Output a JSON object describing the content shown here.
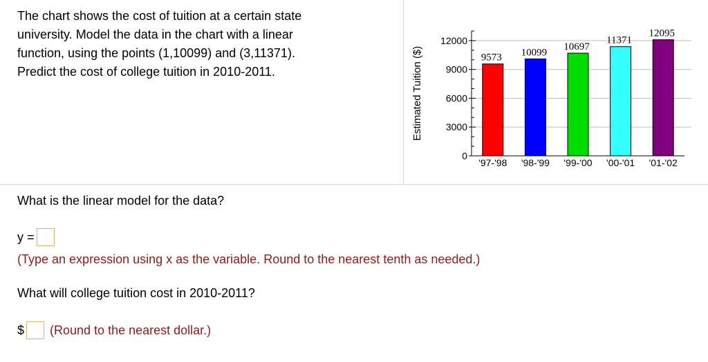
{
  "problem": {
    "lines": [
      "The chart shows the cost of tuition at a certain state",
      "university. Model the data in the chart with a linear",
      "function, using the points (1,10099) and (3,11371).",
      "Predict the cost of college tuition in 2010-2011."
    ]
  },
  "questions": {
    "q1": "What is the linear model for the data?",
    "q1_prefix": "y =",
    "q1_hint": "(Type an expression using x as the variable. Round to the nearest tenth as needed.)",
    "q2": "What will college tuition cost in 2010-2011?",
    "q2_prefix": "$",
    "q2_hint": "(Round to the nearest dollar.)"
  },
  "colors": {
    "hint": "#8b1a1a",
    "answer_box_border": "#d4b36a"
  },
  "chart_data": {
    "type": "bar",
    "categories": [
      "'97-'98",
      "'98-'99",
      "'99-'00",
      "'00-'01",
      "'01-'02"
    ],
    "values": [
      9573,
      10099,
      10697,
      11371,
      12095
    ],
    "data_labels": [
      "9573",
      "10099",
      "10697",
      "11371",
      "12095"
    ],
    "bar_colors": [
      "#ff0000",
      "#0000ff",
      "#00dd00",
      "#33ffff",
      "#800080"
    ],
    "ylabel": "Estimated Tuition ($)",
    "xlabel": "",
    "title": "",
    "ylim": [
      0,
      13000
    ],
    "yticks": [
      0,
      3000,
      6000,
      9000,
      12000
    ],
    "grid": true
  }
}
